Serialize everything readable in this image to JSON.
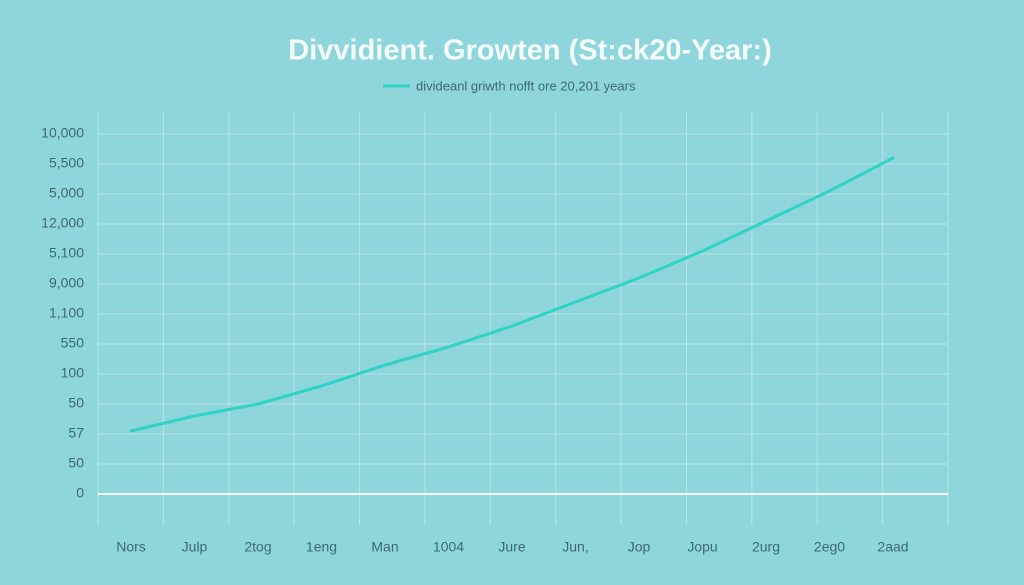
{
  "chart_data": {
    "type": "line",
    "title": "Divvidient. Growten (St:ck20-Year:)",
    "legend_label": "divideanl griwth nofft ore 20,201 years",
    "categories": [
      "Nors",
      "Julp",
      "2tog",
      "1eng",
      "Man",
      "1004",
      "Jure",
      "Jun,",
      "Jop",
      "Jopu",
      "2urg",
      "2eg0",
      "2aad"
    ],
    "y_labels": [
      "0",
      "50",
      "57",
      "50",
      "100",
      "550",
      "1,100",
      "9,000",
      "5,100",
      "12,000",
      "5,000",
      "5,500",
      "10,000"
    ],
    "series": [
      {
        "name": "divideanl griwth nofft ore 20,201 years",
        "color": "#2fd4c4",
        "values": [
          2.1,
          2.6,
          3.0,
          3.6,
          4.3,
          4.9,
          5.6,
          6.4,
          7.2,
          8.1,
          9.1,
          10.1,
          11.2
        ]
      }
    ],
    "ylim": [
      0,
      12
    ],
    "grid": true
  }
}
